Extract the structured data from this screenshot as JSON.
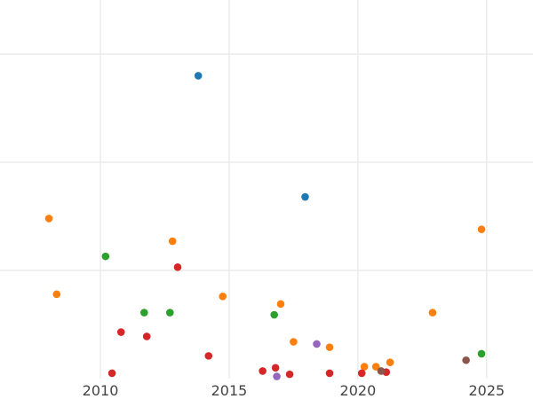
{
  "chart_data": {
    "type": "scatter",
    "title": "",
    "xlabel": "",
    "ylabel": "",
    "xlim": [
      2006.1,
      2026.8
    ],
    "ylim": [
      0.0,
      3.5
    ],
    "x_ticks": [
      2010,
      2015,
      2020,
      2025
    ],
    "x_tick_labels": [
      "2010",
      "2015",
      "2020",
      "2025"
    ],
    "y_gridlines": [
      1.0,
      2.0,
      3.0
    ],
    "grid": true,
    "legend": "none",
    "series": [
      {
        "color": "#1f77b4",
        "points": [
          {
            "x": 2013.8,
            "y": 2.8
          },
          {
            "x": 2017.95,
            "y": 1.68
          }
        ]
      },
      {
        "color": "#ff7f0e",
        "points": [
          {
            "x": 2008.0,
            "y": 1.48
          },
          {
            "x": 2008.3,
            "y": 0.78
          },
          {
            "x": 2012.8,
            "y": 1.27
          },
          {
            "x": 2014.75,
            "y": 0.76
          },
          {
            "x": 2017.0,
            "y": 0.69
          },
          {
            "x": 2017.5,
            "y": 0.34
          },
          {
            "x": 2018.9,
            "y": 0.29
          },
          {
            "x": 2020.25,
            "y": 0.11
          },
          {
            "x": 2020.7,
            "y": 0.11
          },
          {
            "x": 2021.25,
            "y": 0.15
          },
          {
            "x": 2022.9,
            "y": 0.61
          },
          {
            "x": 2024.8,
            "y": 1.38
          }
        ]
      },
      {
        "color": "#2ca02c",
        "points": [
          {
            "x": 2010.2,
            "y": 1.13
          },
          {
            "x": 2011.7,
            "y": 0.61
          },
          {
            "x": 2012.7,
            "y": 0.61
          },
          {
            "x": 2016.75,
            "y": 0.59
          },
          {
            "x": 2024.8,
            "y": 0.23
          }
        ]
      },
      {
        "color": "#d62728",
        "points": [
          {
            "x": 2010.45,
            "y": 0.05
          },
          {
            "x": 2010.8,
            "y": 0.43
          },
          {
            "x": 2011.8,
            "y": 0.39
          },
          {
            "x": 2013.0,
            "y": 1.03
          },
          {
            "x": 2014.2,
            "y": 0.21
          },
          {
            "x": 2016.3,
            "y": 0.07
          },
          {
            "x": 2016.8,
            "y": 0.1
          },
          {
            "x": 2017.35,
            "y": 0.04
          },
          {
            "x": 2018.9,
            "y": 0.05
          },
          {
            "x": 2020.15,
            "y": 0.05
          },
          {
            "x": 2021.1,
            "y": 0.06
          }
        ]
      },
      {
        "color": "#9467bd",
        "points": [
          {
            "x": 2016.85,
            "y": 0.02
          },
          {
            "x": 2018.4,
            "y": 0.32
          }
        ]
      },
      {
        "color": "#8c564b",
        "points": [
          {
            "x": 2020.9,
            "y": 0.07
          },
          {
            "x": 2024.2,
            "y": 0.17
          }
        ]
      }
    ]
  }
}
